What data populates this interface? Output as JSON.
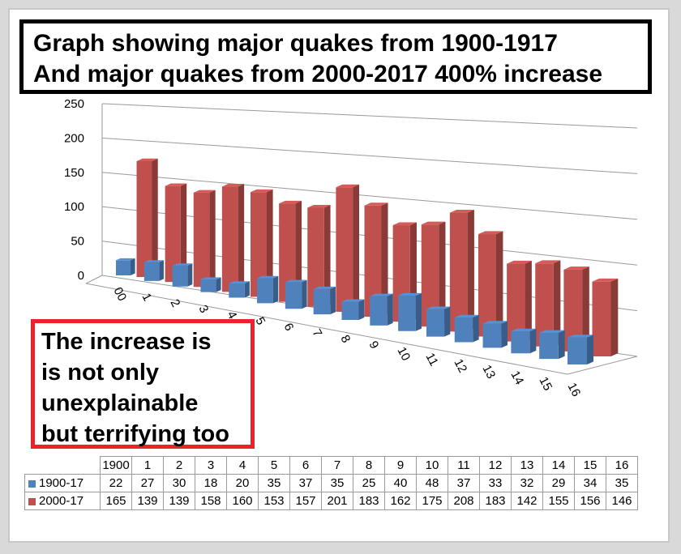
{
  "title": {
    "line1": "Graph showing major quakes from 1900-1917",
    "line2": "And major quakes from 2000-2017 400% increase"
  },
  "callout": {
    "lines": [
      "The increase is",
      "is not only",
      "unexplainable",
      "but terrifying too"
    ]
  },
  "colors": {
    "series_1900": "#4f81bd",
    "series_2000": "#c0504d",
    "title_border": "#000000",
    "callout_border": "#e8232a"
  },
  "chart_data": {
    "type": "bar",
    "title": "",
    "xlabel": "",
    "ylabel": "",
    "ylim": [
      0,
      250
    ],
    "yticks": [
      "0",
      "50",
      "100",
      "150",
      "200",
      "250"
    ],
    "categories": [
      "1900",
      "1",
      "2",
      "3",
      "4",
      "5",
      "6",
      "7",
      "8",
      "9",
      "10",
      "11",
      "12",
      "13",
      "14",
      "15",
      "16"
    ],
    "axis_categories": [
      "00",
      "1",
      "2",
      "3",
      "4",
      "5",
      "6",
      "7",
      "8",
      "9",
      "10",
      "11",
      "12",
      "13",
      "14",
      "15",
      "16"
    ],
    "series": [
      {
        "name": "1900-17",
        "values": [
          22,
          27,
          30,
          18,
          20,
          35,
          37,
          35,
          25,
          40,
          48,
          37,
          33,
          32,
          29,
          34,
          35
        ]
      },
      {
        "name": "2000-17",
        "values": [
          165,
          139,
          139,
          158,
          160,
          153,
          157,
          201,
          183,
          162,
          175,
          208,
          183,
          142,
          155,
          156,
          146
        ]
      }
    ],
    "grid": true,
    "legend": "table-below",
    "style": "3d-perspective"
  }
}
